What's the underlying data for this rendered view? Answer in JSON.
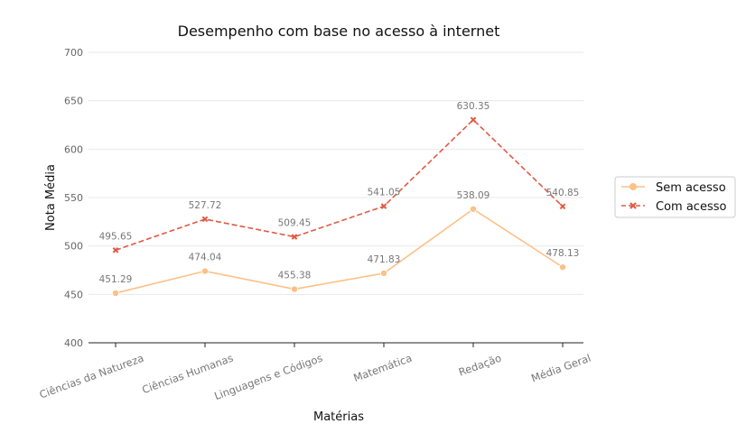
{
  "chart_data": {
    "type": "line",
    "title": "Desempenho com base no acesso à internet",
    "xlabel": "Matérias",
    "ylabel": "Nota Média",
    "ylim": [
      400,
      700
    ],
    "yticks": [
      400,
      450,
      500,
      550,
      600,
      650,
      700
    ],
    "categories": [
      "Ciências da Natureza",
      "Ciências Humanas",
      "Linguagens e Códigos",
      "Matemática",
      "Redação",
      "Média Geral"
    ],
    "series": [
      {
        "name": "Sem acesso",
        "values": [
          451.29,
          474.04,
          455.38,
          471.83,
          538.09,
          478.13
        ],
        "labels": [
          "451.29",
          "474.04",
          "455.38",
          "471.83",
          "538.09",
          "478.13"
        ],
        "color": "#fdc086",
        "marker": "circle",
        "line_style": "solid"
      },
      {
        "name": "Com acesso",
        "values": [
          495.65,
          527.72,
          509.45,
          541.05,
          630.35,
          540.85
        ],
        "labels": [
          "495.65",
          "527.72",
          "509.45",
          "541.05",
          "630.35",
          "540.85"
        ],
        "color": "#e05a45",
        "marker": "x",
        "line_style": "dashed"
      }
    ],
    "grid": "horizontal",
    "legend_position": "right"
  }
}
